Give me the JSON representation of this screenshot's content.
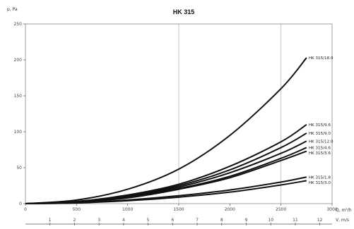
{
  "chart_data": {
    "type": "line",
    "title": "HK 315",
    "ylabel": "p, Pa",
    "xlabel": "Q, m³/h",
    "x2label": "V, m/s",
    "xlim": [
      0,
      3000
    ],
    "ylim": [
      0,
      250
    ],
    "x_ticks": [
      "0",
      "500",
      "1000",
      "1500",
      "2000",
      "2500",
      "3000"
    ],
    "y_ticks": [
      "0",
      "50",
      "100",
      "150",
      "200",
      "250"
    ],
    "v_ticks": [
      "1",
      "2",
      "3",
      "4",
      "5",
      "6",
      "7",
      "8",
      "9",
      "10",
      "11",
      "12"
    ],
    "grid_x": [
      1500,
      2500
    ],
    "series": [
      {
        "name": "HK 315/18.0",
        "x": [
          0,
          500,
          1000,
          1500,
          2000,
          2500,
          2750
        ],
        "values": [
          0,
          5,
          20,
          48,
          95,
          160,
          203
        ]
      },
      {
        "name": "HK 315/9.6",
        "x": [
          0,
          500,
          1000,
          1500,
          2000,
          2500,
          2750
        ],
        "values": [
          0,
          3,
          12,
          27,
          52,
          86,
          110
        ]
      },
      {
        "name": "HK 315/9.0",
        "x": [
          0,
          500,
          1000,
          1500,
          2000,
          2500,
          2750
        ],
        "values": [
          0,
          3,
          11,
          25,
          47,
          78,
          98
        ]
      },
      {
        "name": "HK 315/12.0",
        "x": [
          0,
          500,
          1000,
          1500,
          2000,
          2500,
          2750
        ],
        "values": [
          0,
          3,
          10,
          23,
          43,
          70,
          87
        ]
      },
      {
        "name": "HK 315/4.6",
        "x": [
          0,
          500,
          1000,
          1500,
          2000,
          2500,
          2750
        ],
        "values": [
          0,
          2,
          9,
          21,
          38,
          63,
          78
        ]
      },
      {
        "name": "HK 315/3.6",
        "x": [
          0,
          500,
          1000,
          1500,
          2000,
          2500,
          2750
        ],
        "values": [
          0,
          2,
          8,
          20,
          36,
          60,
          73
        ]
      },
      {
        "name": "HK 315/1.8",
        "x": [
          0,
          500,
          1000,
          1500,
          2000,
          2500,
          2750
        ],
        "values": [
          0,
          1,
          5,
          11,
          19,
          30,
          37
        ]
      },
      {
        "name": "HK 315/3.0",
        "x": [
          0,
          500,
          1000,
          1500,
          2000,
          2500,
          2750
        ],
        "values": [
          0,
          1,
          4,
          9,
          16,
          26,
          32
        ]
      }
    ]
  }
}
